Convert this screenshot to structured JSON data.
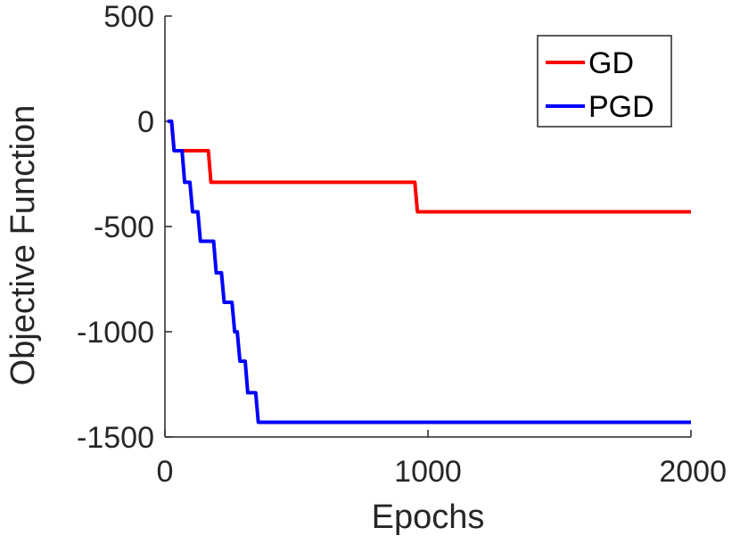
{
  "chart_data": {
    "type": "line",
    "xlabel": "Epochs",
    "ylabel": "Objective Function",
    "xlim": [
      0,
      2000
    ],
    "ylim": [
      -1500,
      500
    ],
    "xticks": [
      0,
      1000,
      2000
    ],
    "xtick_labels": [
      "0",
      "1000",
      "2000"
    ],
    "yticks": [
      500,
      0,
      -500,
      -1000,
      -1500
    ],
    "ytick_labels": [
      "500",
      "0",
      "-500",
      "-1000",
      "-1500"
    ],
    "grid": false,
    "legend_position": "top-right",
    "series": [
      {
        "name": "GD",
        "color": "#ff0000",
        "points": [
          [
            10,
            0
          ],
          [
            25,
            0
          ],
          [
            35,
            -140
          ],
          [
            165,
            -140
          ],
          [
            175,
            -290
          ],
          [
            950,
            -290
          ],
          [
            960,
            -430
          ],
          [
            2000,
            -430
          ]
        ]
      },
      {
        "name": "PGD",
        "color": "#0000ff",
        "points": [
          [
            10,
            0
          ],
          [
            25,
            0
          ],
          [
            35,
            -140
          ],
          [
            65,
            -140
          ],
          [
            75,
            -290
          ],
          [
            95,
            -290
          ],
          [
            105,
            -430
          ],
          [
            125,
            -430
          ],
          [
            135,
            -570
          ],
          [
            185,
            -570
          ],
          [
            195,
            -720
          ],
          [
            215,
            -720
          ],
          [
            225,
            -860
          ],
          [
            255,
            -860
          ],
          [
            265,
            -1000
          ],
          [
            275,
            -1000
          ],
          [
            285,
            -1140
          ],
          [
            305,
            -1140
          ],
          [
            315,
            -1290
          ],
          [
            345,
            -1290
          ],
          [
            355,
            -1430
          ],
          [
            2000,
            -1430
          ]
        ]
      }
    ]
  }
}
